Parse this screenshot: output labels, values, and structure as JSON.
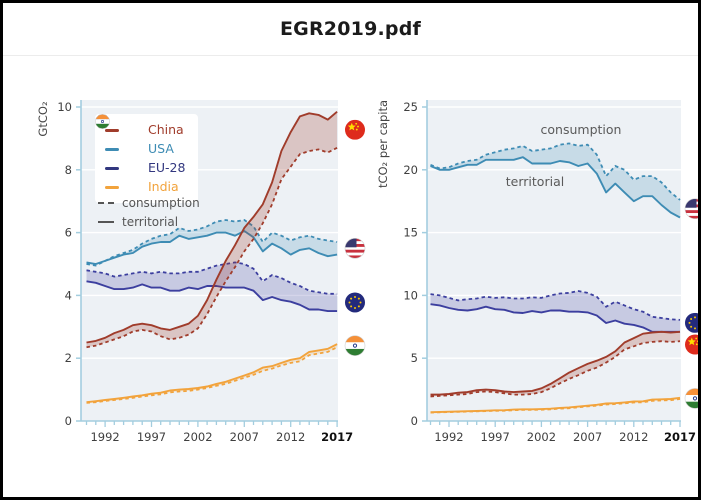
{
  "header": {
    "title": "EGR2019.pdf"
  },
  "legend": {
    "items": [
      {
        "label": "China",
        "country": "china",
        "color": "#a03c2b"
      },
      {
        "label": "USA",
        "country": "usa",
        "color": "#3e8cb4"
      },
      {
        "label": "EU-28",
        "country": "eu",
        "color": "#32377f"
      },
      {
        "label": "India",
        "country": "india",
        "color": "#f2a33c"
      }
    ],
    "consumption_label": "consumption",
    "territorial_label": "territorial"
  },
  "annotations": {
    "consumption": "consumption",
    "territorial": "territorial"
  },
  "colors": {
    "plot_background": "#edf1f5",
    "axis": "#a3cddf",
    "gridline": "#ffffff",
    "tick_label": "#3f3f3f",
    "tick_label_last": "#101010",
    "annotation_text": "#5a5a5a"
  },
  "chart_data": [
    {
      "type": "line",
      "ylabel": "GtCO₂",
      "ylim": [
        0,
        10
      ],
      "y_ticks": [
        0,
        2,
        4,
        6,
        8,
        10
      ],
      "x_tick_labels": [
        "1992",
        "1997",
        "2002",
        "2007",
        "2012",
        "2017"
      ],
      "years": [
        1990,
        1991,
        1992,
        1993,
        1994,
        1995,
        1996,
        1997,
        1998,
        1999,
        2000,
        2001,
        2002,
        2003,
        2004,
        2005,
        2006,
        2007,
        2008,
        2009,
        2010,
        2011,
        2012,
        2013,
        2014,
        2015,
        2016,
        2017
      ],
      "legend_note": "dashed = consumption, solid = territorial",
      "series": [
        {
          "name": "China",
          "country": "china",
          "color": "#a03c2b",
          "fill": "rgba(160,60,43,0.24)",
          "territorial": [
            2.5,
            2.55,
            2.65,
            2.8,
            2.9,
            3.05,
            3.1,
            3.05,
            2.95,
            2.9,
            3.0,
            3.1,
            3.35,
            3.85,
            4.5,
            5.1,
            5.6,
            6.15,
            6.5,
            6.9,
            7.6,
            8.6,
            9.2,
            9.7,
            9.8,
            9.75,
            9.6,
            9.85
          ],
          "consumption": [
            2.35,
            2.4,
            2.5,
            2.6,
            2.7,
            2.85,
            2.9,
            2.85,
            2.7,
            2.6,
            2.65,
            2.75,
            2.95,
            3.4,
            3.95,
            4.45,
            4.9,
            5.4,
            5.8,
            6.3,
            6.9,
            7.7,
            8.1,
            8.5,
            8.6,
            8.65,
            8.55,
            8.7
          ]
        },
        {
          "name": "USA",
          "country": "usa",
          "color": "#3e8cb4",
          "fill": "rgba(62,140,180,0.22)",
          "territorial": [
            5.05,
            5.0,
            5.1,
            5.2,
            5.3,
            5.35,
            5.55,
            5.65,
            5.7,
            5.7,
            5.9,
            5.8,
            5.85,
            5.9,
            6.0,
            6.0,
            5.9,
            6.05,
            5.85,
            5.4,
            5.65,
            5.5,
            5.3,
            5.45,
            5.5,
            5.35,
            5.25,
            5.3
          ],
          "consumption": [
            5.0,
            4.95,
            5.1,
            5.25,
            5.35,
            5.45,
            5.65,
            5.8,
            5.9,
            5.95,
            6.15,
            6.05,
            6.1,
            6.2,
            6.35,
            6.4,
            6.35,
            6.4,
            6.2,
            5.7,
            6.0,
            5.9,
            5.75,
            5.85,
            5.9,
            5.8,
            5.75,
            5.7
          ]
        },
        {
          "name": "EU-28",
          "country": "eu",
          "color": "#3c3f9f",
          "fill": "rgba(64,64,160,0.22)",
          "territorial": [
            4.45,
            4.4,
            4.3,
            4.2,
            4.2,
            4.25,
            4.35,
            4.25,
            4.25,
            4.15,
            4.15,
            4.25,
            4.2,
            4.3,
            4.3,
            4.25,
            4.25,
            4.25,
            4.15,
            3.85,
            3.95,
            3.85,
            3.8,
            3.7,
            3.55,
            3.55,
            3.5,
            3.5
          ],
          "consumption": [
            4.8,
            4.75,
            4.7,
            4.6,
            4.65,
            4.7,
            4.75,
            4.7,
            4.75,
            4.7,
            4.7,
            4.75,
            4.75,
            4.85,
            4.95,
            5.0,
            5.05,
            5.0,
            4.85,
            4.45,
            4.65,
            4.55,
            4.4,
            4.3,
            4.15,
            4.1,
            4.05,
            4.05
          ]
        },
        {
          "name": "India",
          "country": "india",
          "color": "#f2a33c",
          "fill": "rgba(242,163,60,0.2)",
          "territorial": [
            0.6,
            0.63,
            0.67,
            0.7,
            0.74,
            0.78,
            0.82,
            0.87,
            0.9,
            0.97,
            1.0,
            1.02,
            1.05,
            1.1,
            1.18,
            1.25,
            1.35,
            1.45,
            1.55,
            1.7,
            1.75,
            1.85,
            1.95,
            2.0,
            2.2,
            2.25,
            2.3,
            2.45
          ],
          "consumption": [
            0.58,
            0.6,
            0.64,
            0.67,
            0.7,
            0.74,
            0.78,
            0.82,
            0.85,
            0.91,
            0.94,
            0.96,
            1.0,
            1.05,
            1.12,
            1.18,
            1.28,
            1.38,
            1.47,
            1.6,
            1.67,
            1.77,
            1.85,
            1.9,
            2.1,
            2.15,
            2.2,
            2.35
          ]
        }
      ]
    },
    {
      "type": "line",
      "ylabel": "tCO₂ per capita",
      "ylim": [
        0,
        25
      ],
      "y_ticks": [
        0,
        5,
        10,
        15,
        20,
        25
      ],
      "x_tick_labels": [
        "1992",
        "1997",
        "2002",
        "2007",
        "2012",
        "2017"
      ],
      "years": [
        1990,
        1991,
        1992,
        1993,
        1994,
        1995,
        1996,
        1997,
        1998,
        1999,
        2000,
        2001,
        2002,
        2003,
        2004,
        2005,
        2006,
        2007,
        2008,
        2009,
        2010,
        2011,
        2012,
        2013,
        2014,
        2015,
        2016,
        2017
      ],
      "series": [
        {
          "name": "China",
          "country": "china",
          "color": "#a03c2b",
          "fill": "rgba(160,60,43,0.24)",
          "territorial": [
            2.1,
            2.1,
            2.15,
            2.25,
            2.3,
            2.45,
            2.5,
            2.45,
            2.35,
            2.3,
            2.35,
            2.4,
            2.6,
            2.95,
            3.4,
            3.85,
            4.2,
            4.55,
            4.8,
            5.1,
            5.55,
            6.25,
            6.6,
            6.95,
            7.05,
            7.1,
            7.05,
            7.1
          ],
          "consumption": [
            1.95,
            2.0,
            2.05,
            2.1,
            2.15,
            2.3,
            2.35,
            2.3,
            2.2,
            2.1,
            2.1,
            2.15,
            2.3,
            2.6,
            3.0,
            3.35,
            3.65,
            4.0,
            4.25,
            4.65,
            5.1,
            5.7,
            5.95,
            6.2,
            6.3,
            6.35,
            6.3,
            6.35
          ]
        },
        {
          "name": "USA",
          "country": "usa",
          "color": "#3e8cb4",
          "fill": "rgba(62,140,180,0.22)",
          "territorial": [
            20.3,
            20.0,
            20.0,
            20.2,
            20.4,
            20.4,
            20.8,
            20.8,
            20.8,
            20.8,
            21.0,
            20.5,
            20.5,
            20.5,
            20.7,
            20.6,
            20.3,
            20.5,
            19.7,
            18.2,
            18.9,
            18.2,
            17.5,
            17.9,
            17.9,
            17.2,
            16.6,
            16.2
          ],
          "consumption": [
            20.4,
            20.1,
            20.2,
            20.5,
            20.7,
            20.8,
            21.2,
            21.4,
            21.6,
            21.7,
            21.9,
            21.5,
            21.6,
            21.7,
            22.0,
            22.1,
            21.9,
            22.0,
            21.2,
            19.5,
            20.3,
            20.0,
            19.2,
            19.5,
            19.5,
            19.0,
            18.2,
            17.6
          ]
        },
        {
          "name": "EU-28",
          "country": "eu",
          "color": "#3c3f9f",
          "fill": "rgba(64,64,160,0.22)",
          "territorial": [
            9.3,
            9.2,
            9.0,
            8.85,
            8.8,
            8.9,
            9.1,
            8.9,
            8.85,
            8.65,
            8.6,
            8.75,
            8.65,
            8.8,
            8.8,
            8.7,
            8.7,
            8.65,
            8.4,
            7.8,
            8.0,
            7.75,
            7.65,
            7.45,
            7.1,
            7.1,
            7.1,
            7.1
          ],
          "consumption": [
            10.1,
            10.0,
            9.8,
            9.6,
            9.7,
            9.75,
            9.9,
            9.8,
            9.85,
            9.75,
            9.75,
            9.85,
            9.8,
            10.0,
            10.15,
            10.2,
            10.35,
            10.2,
            9.9,
            9.1,
            9.5,
            9.2,
            8.9,
            8.7,
            8.3,
            8.2,
            8.1,
            8.05
          ]
        },
        {
          "name": "India",
          "country": "india",
          "color": "#f2a33c",
          "fill": "rgba(242,163,60,0.2)",
          "territorial": [
            0.7,
            0.72,
            0.74,
            0.76,
            0.78,
            0.8,
            0.82,
            0.85,
            0.86,
            0.91,
            0.93,
            0.93,
            0.95,
            0.98,
            1.04,
            1.08,
            1.15,
            1.22,
            1.29,
            1.39,
            1.42,
            1.48,
            1.55,
            1.57,
            1.7,
            1.73,
            1.75,
            1.85
          ],
          "consumption": [
            0.67,
            0.69,
            0.71,
            0.73,
            0.75,
            0.77,
            0.79,
            0.81,
            0.82,
            0.86,
            0.88,
            0.88,
            0.9,
            0.93,
            0.99,
            1.02,
            1.09,
            1.16,
            1.22,
            1.31,
            1.35,
            1.41,
            1.47,
            1.49,
            1.61,
            1.64,
            1.66,
            1.75
          ]
        }
      ]
    }
  ]
}
